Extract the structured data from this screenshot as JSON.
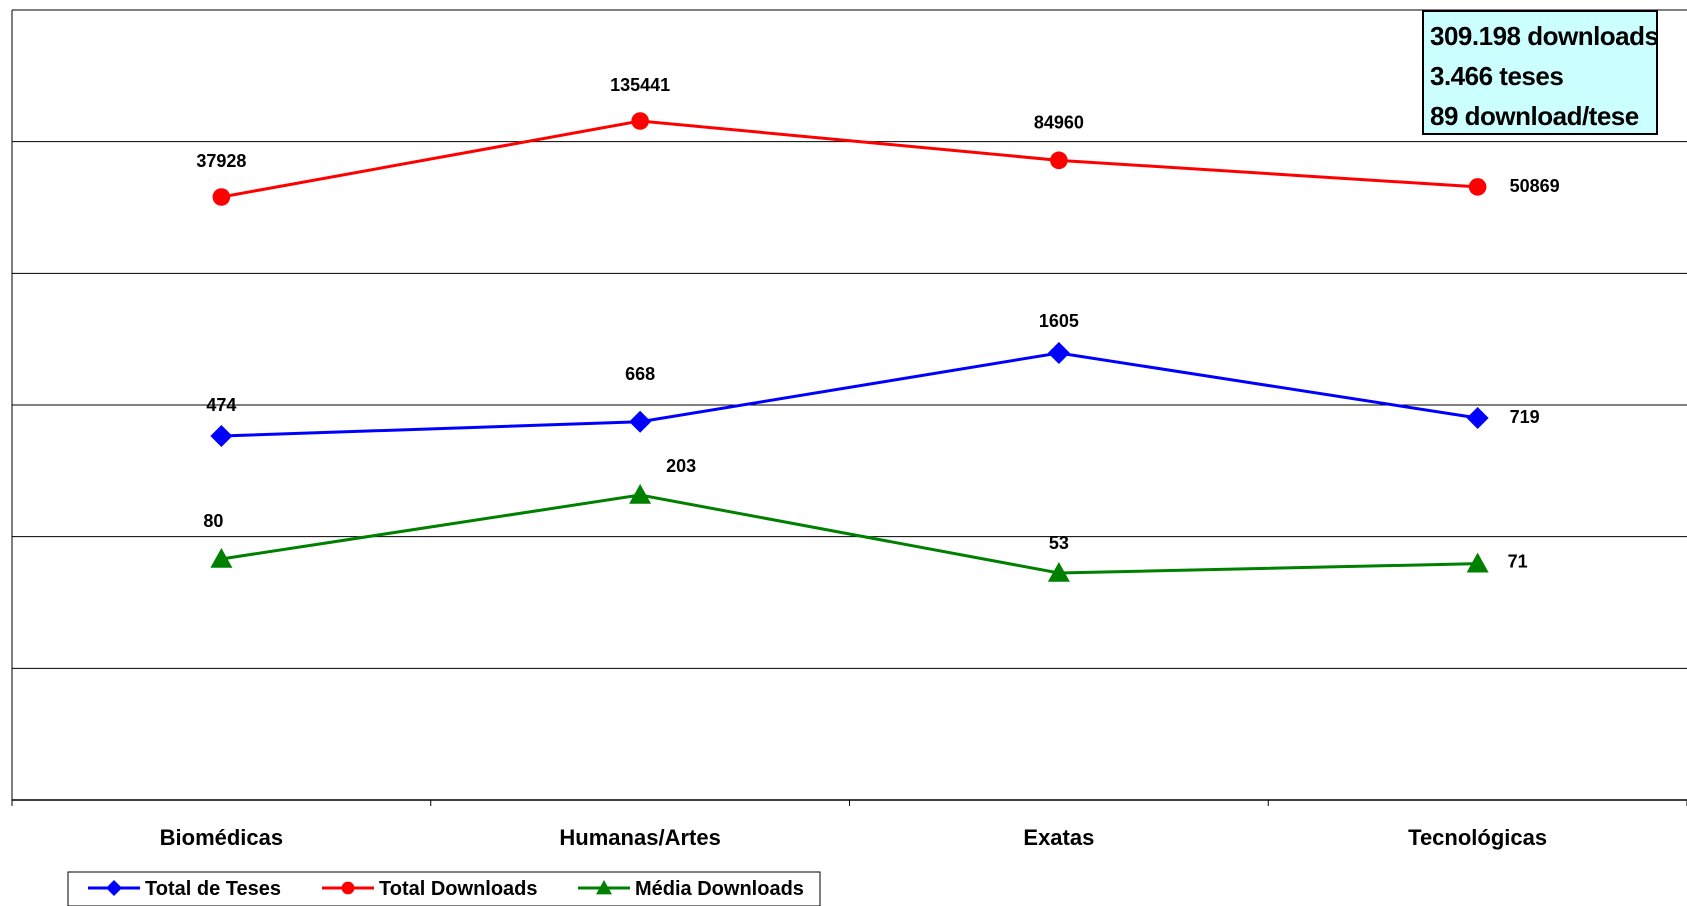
{
  "summary": {
    "line1": "309.198 downloads",
    "line2": "3.466 teses",
    "line3": "89 download/tese"
  },
  "chart_data": {
    "type": "line",
    "categories": [
      "Biomédicas",
      "Humanas/Artes",
      "Exatas",
      "Tecnológicas"
    ],
    "title": "",
    "xlabel": "",
    "ylabel": "",
    "y_axis_labels_shown": false,
    "grid": true,
    "legend_position": "bottom-left",
    "series": [
      {
        "name": "Total de Teses",
        "color": "#0000ff",
        "marker": "diamond",
        "values": [
          474,
          668,
          1605,
          719
        ]
      },
      {
        "name": "Total Downloads",
        "color": "#ff0000",
        "marker": "circle",
        "values": [
          37928,
          135441,
          84960,
          50869
        ]
      },
      {
        "name": "Média Downloads",
        "color": "#008000",
        "marker": "triangle",
        "values": [
          80,
          203,
          53,
          71
        ]
      }
    ]
  }
}
